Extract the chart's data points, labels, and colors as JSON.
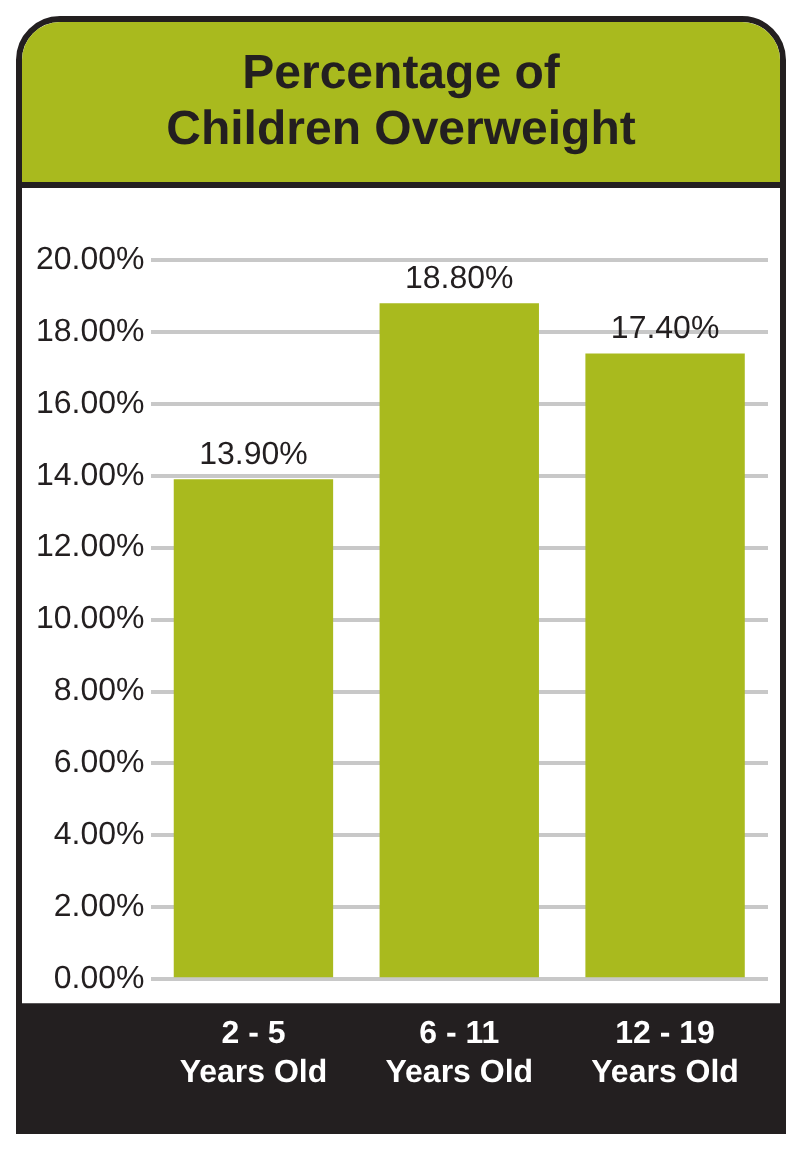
{
  "chart_data": {
    "type": "bar",
    "title": "Percentage of\nChildren Overweight",
    "categories": [
      "2 - 5\nYears Old",
      "6 - 11\nYears Old",
      "12 - 19\nYears Old"
    ],
    "values": [
      13.9,
      18.8,
      17.4
    ],
    "value_labels": [
      "13.90%",
      "18.80%",
      "17.40%"
    ],
    "color": "#a9ba1e",
    "ylim": [
      0,
      20
    ],
    "yticks": [
      {
        "value": 0,
        "label": "0.00%"
      },
      {
        "value": 2,
        "label": "2.00%"
      },
      {
        "value": 4,
        "label": "4.00%"
      },
      {
        "value": 6,
        "label": "6.00%"
      },
      {
        "value": 8,
        "label": "8.00%"
      },
      {
        "value": 10,
        "label": "10.00%"
      },
      {
        "value": 12,
        "label": "12.00%"
      },
      {
        "value": 14,
        "label": "14.00%"
      },
      {
        "value": 16,
        "label": "16.00%"
      },
      {
        "value": 18,
        "label": "18.00%"
      },
      {
        "value": 20,
        "label": "20.00%"
      }
    ],
    "grid": "y",
    "legend": false
  }
}
